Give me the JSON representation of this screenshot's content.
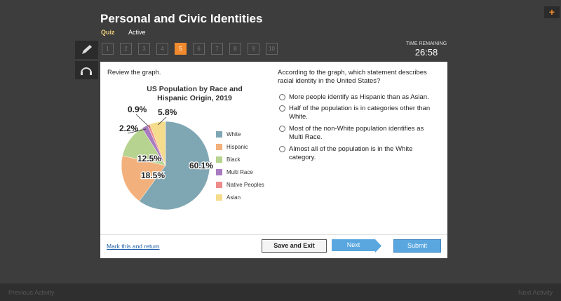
{
  "header": {
    "title": "Personal and Civic Identities",
    "status": "Quiz",
    "state": "Active"
  },
  "nav": {
    "questions": [
      {
        "label": "1"
      },
      {
        "label": "2"
      },
      {
        "label": "3"
      },
      {
        "label": "4"
      },
      {
        "label": "5",
        "active": true
      },
      {
        "label": "6"
      },
      {
        "label": "7"
      },
      {
        "label": "8"
      },
      {
        "label": "9"
      },
      {
        "label": "10"
      }
    ]
  },
  "timer": {
    "label": "TIME REMAINING",
    "value": "26:58"
  },
  "left": {
    "prompt": "Review the graph."
  },
  "chart_data": {
    "type": "pie",
    "title": "US Population by Race and Hispanic Origin, 2019",
    "categories": [
      "White",
      "Hispanic",
      "Black",
      "Multi Race",
      "Native Peoples",
      "Asian"
    ],
    "values": [
      60.1,
      18.5,
      12.5,
      2.2,
      0.9,
      5.8
    ],
    "value_labels": [
      "60.1%",
      "18.5%",
      "12.5%",
      "2.2%",
      "0.9%",
      "5.8%"
    ],
    "colors": [
      "#7fa6b3",
      "#f2b07c",
      "#b6d490",
      "#a87bc0",
      "#ee8b8b",
      "#f4dc8c"
    ],
    "legend": "right"
  },
  "question": {
    "text": "According to the graph, which statement describes racial identity in the United States?",
    "options": [
      "More people identify as Hispanic than as Asian.",
      "Half of the population is in categories other than White.",
      "Most of the non-White population identifies as Multi Race.",
      "Almost all of the population is in the White category."
    ]
  },
  "footer": {
    "link": "Mark this and return",
    "save": "Save and Exit",
    "next": "Next",
    "submit": "Submit"
  },
  "bottom": {
    "previous": "Previous Activity",
    "next": "Next Activity"
  }
}
